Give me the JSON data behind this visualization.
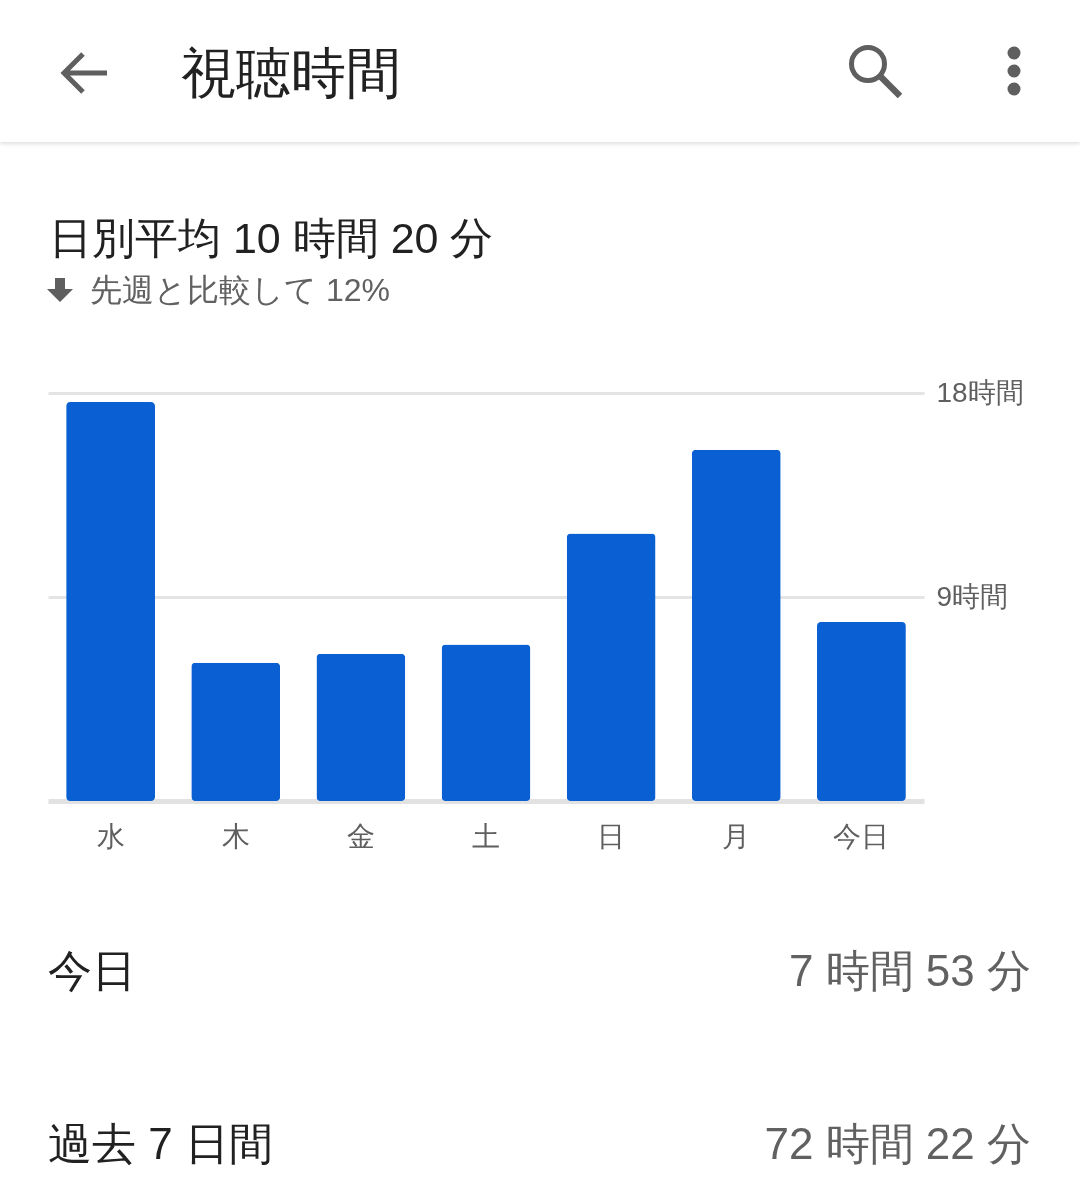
{
  "chart_data": {
    "type": "bar",
    "title": "視聴時間",
    "subtitle": "日別平均 10 時間 20 分",
    "categories": [
      "水",
      "木",
      "金",
      "土",
      "日",
      "月",
      "今日"
    ],
    "values": [
      17.6,
      6.1,
      6.5,
      6.9,
      11.8,
      15.5,
      7.9
    ],
    "color": "#0a5fd3",
    "ylim": [
      0,
      18
    ],
    "yticks": [
      {
        "value": 9,
        "label": "9時間"
      },
      {
        "value": 18,
        "label": "18時間"
      }
    ],
    "grid": "y",
    "annotations": [
      "先週と比較して 12%",
      "今日",
      "7 時間 53 分",
      "過去 7 日間",
      "72 時間 22 分"
    ]
  }
}
